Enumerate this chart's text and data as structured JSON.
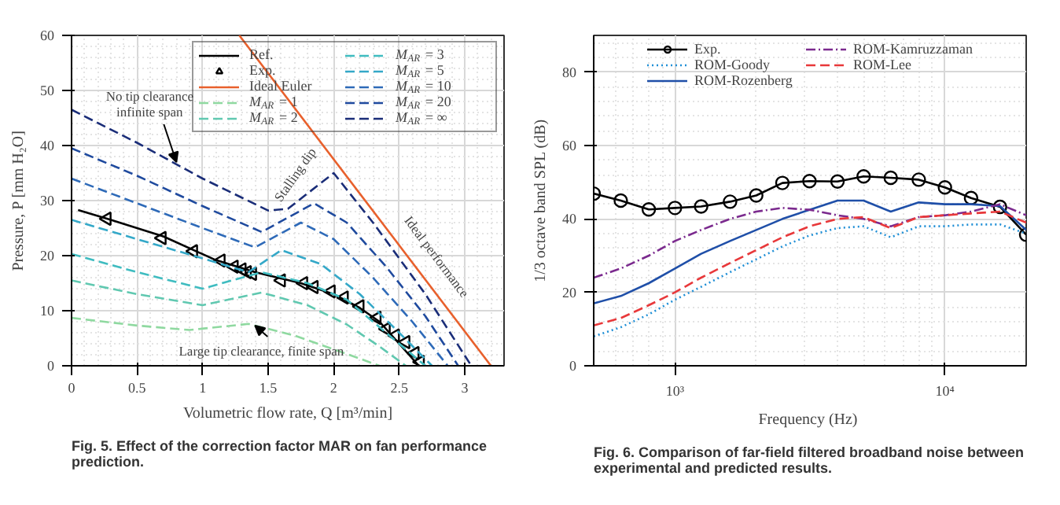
{
  "chart_data": [
    {
      "type": "line",
      "xlabel": "Volumetric flow rate, Q [m³/min]",
      "ylabel": "Pressure, P [mm H₂O]",
      "xlim": [
        0,
        3.3
      ],
      "ylim": [
        0,
        60
      ],
      "xticks": [
        0,
        0.5,
        1,
        1.5,
        2,
        2.5,
        3
      ],
      "yticks": [
        0,
        10,
        20,
        30,
        40,
        50,
        60
      ],
      "grid": true,
      "legend": "top right",
      "annotations": [
        {
          "text": "No tip clearance\ninfinite span",
          "x": 0.8,
          "y": 37
        },
        {
          "text": "Stalling dip",
          "x": 1.8,
          "y": 31.3
        },
        {
          "text": "Ideal performance",
          "x": 2.62,
          "y": 18.1
        },
        {
          "text": "Large tip clearance, finite span",
          "x": 1.4,
          "y": 7.3
        },
        "Fig. 5. Effect of the correction factor MAR on fan performance prediction."
      ],
      "series": [
        {
          "name": "Ref.",
          "type": "line",
          "color": "#000000",
          "line_style": "solid",
          "x": [
            0.05,
            0.3,
            0.7,
            1.1,
            1.4,
            1.75,
            2.0,
            2.2,
            2.35,
            2.5,
            2.65
          ],
          "values": [
            28.3,
            26.5,
            23.5,
            19.2,
            17,
            15,
            13,
            10.5,
            8,
            4,
            0
          ]
        },
        {
          "name": "Exp.",
          "type": "scatter",
          "marker": "triangle",
          "color": "#000000",
          "x": [
            0.27,
            0.69,
            0.93,
            1.14,
            1.24,
            1.3,
            1.34,
            1.38,
            1.6,
            1.77,
            1.85,
            1.98,
            2.08,
            2.2,
            2.33,
            2.4,
            2.47,
            2.55,
            2.62,
            2.66
          ],
          "values": [
            26.7,
            23.2,
            20.8,
            19.1,
            18,
            17.5,
            17,
            16.7,
            15.5,
            15,
            14.3,
            13.5,
            12.4,
            10.8,
            8.7,
            6.7,
            5.5,
            4.3,
            2.3,
            0.7
          ]
        },
        {
          "name": "Ideal Euler",
          "type": "line",
          "color": "#e8602c",
          "line_style": "solid",
          "x": [
            1.28,
            3.2
          ],
          "values": [
            60,
            0
          ]
        },
        {
          "name": "M$_{AR}$ = 1",
          "type": "line",
          "color": "#8fd9a0",
          "line_style": "dashed",
          "x": [
            0,
            0.5,
            0.9,
            1.35,
            1.7,
            2.0,
            2.35
          ],
          "values": [
            8.7,
            7.3,
            6.5,
            7.6,
            5.5,
            3,
            0
          ]
        },
        {
          "name": "M$_{AR}$ = 2",
          "type": "line",
          "color": "#60c8b0",
          "line_style": "dashed",
          "x": [
            0,
            0.5,
            1.0,
            1.45,
            1.8,
            2.1,
            2.35,
            2.55
          ],
          "values": [
            15.5,
            13,
            11,
            13.3,
            11,
            7.5,
            3.5,
            0
          ]
        },
        {
          "name": "M$_{AR}$ = 3",
          "type": "line",
          "color": "#3fbcc0",
          "line_style": "dashed",
          "x": [
            0,
            0.5,
            1.0,
            1.45,
            1.8,
            2.1,
            2.4,
            2.7
          ],
          "values": [
            20.3,
            17,
            14,
            17,
            15,
            12,
            6,
            0
          ]
        },
        {
          "name": "M$_{AR}$ = 5",
          "type": "line",
          "color": "#34a8c8",
          "line_style": "dashed",
          "x": [
            0,
            0.5,
            1.0,
            1.35,
            1.6,
            1.9,
            2.2,
            2.5,
            2.75
          ],
          "values": [
            26.5,
            23,
            19.5,
            17,
            21,
            18.5,
            13,
            6,
            0
          ]
        },
        {
          "name": "M$_{AR}$ = 10",
          "type": "line",
          "color": "#2e6ab8",
          "line_style": "dashed",
          "x": [
            0,
            0.5,
            1.0,
            1.4,
            1.75,
            2.0,
            2.3,
            2.6,
            2.87
          ],
          "values": [
            34,
            29.5,
            25,
            21.5,
            26,
            23,
            16,
            8,
            0
          ]
        },
        {
          "name": "M$_{AR}$ = 20",
          "type": "line",
          "color": "#1f4a9e",
          "line_style": "dashed",
          "x": [
            0,
            0.5,
            1.0,
            1.45,
            1.85,
            2.1,
            2.4,
            2.7,
            2.95
          ],
          "values": [
            39.5,
            34.5,
            29,
            24.3,
            29.5,
            26,
            18,
            9,
            0
          ]
        },
        {
          "name": "M$_{AR}$ = ∞",
          "type": "line",
          "color": "#1a2d78",
          "line_style": "dashed",
          "x": [
            0,
            0.5,
            1.0,
            1.5,
            1.65,
            2.0,
            2.3,
            2.7,
            3.05
          ],
          "values": [
            46.5,
            40.5,
            34,
            28.2,
            28.5,
            35,
            26,
            13,
            0
          ]
        }
      ]
    },
    {
      "type": "line",
      "xlabel": "Frequency  (Hz)",
      "ylabel": "1/3 octave band SPL (dB)",
      "log": "x",
      "xlim": [
        500,
        20000
      ],
      "ylim": [
        0,
        90
      ],
      "xticks": [
        {
          "value": 1000,
          "label": "10³"
        },
        {
          "value": 10000,
          "label": "10⁴"
        }
      ],
      "yticks": [
        0,
        20,
        40,
        60,
        80
      ],
      "grid": true,
      "legend": "top",
      "x": [
        500,
        630,
        800,
        1000,
        1250,
        1600,
        2000,
        2500,
        3150,
        4000,
        5000,
        6300,
        8000,
        10000,
        12500,
        16000,
        20000
      ],
      "annotations": [
        "Fig. 6. Comparison of far-field filtered broadband noise between experimental and predicted results."
      ],
      "series": [
        {
          "name": "Exp.",
          "color": "#000000",
          "line_style": "solid",
          "marker": "circle",
          "values": [
            46.9,
            45,
            42.6,
            43,
            43.4,
            44.7,
            46.4,
            49.8,
            50.3,
            50.2,
            51.6,
            51.2,
            50.7,
            48.6,
            45.7,
            43.3,
            35.7
          ]
        },
        {
          "name": "ROM-Goody",
          "color": "#1f8fd6",
          "line_style": "dotted",
          "values": [
            8,
            10.5,
            14,
            18,
            21.5,
            25.5,
            29,
            32.5,
            35.5,
            37.5,
            38,
            35,
            38,
            38,
            38.5,
            38.5,
            36
          ]
        },
        {
          "name": "ROM-Rozenberg",
          "color": "#1f4fa8",
          "line_style": "solid",
          "values": [
            17,
            19,
            22.5,
            26.5,
            30.5,
            34,
            37,
            40,
            42.5,
            45,
            45,
            42,
            44.5,
            44,
            44,
            43.5,
            37
          ]
        },
        {
          "name": "ROM-Kamruzzaman",
          "color": "#7b2a8e",
          "line_style": "dashdot",
          "values": [
            24,
            26.5,
            30,
            34,
            37,
            40,
            42,
            43,
            42.5,
            41,
            40,
            38,
            40.5,
            41,
            42,
            44,
            41
          ]
        },
        {
          "name": "ROM-Lee",
          "color": "#e8383a",
          "line_style": "dashed",
          "values": [
            11,
            13,
            16.5,
            20,
            24,
            28,
            31.5,
            35,
            38,
            40,
            40.5,
            37.5,
            40.5,
            41,
            41.5,
            42,
            39
          ]
        }
      ]
    }
  ]
}
